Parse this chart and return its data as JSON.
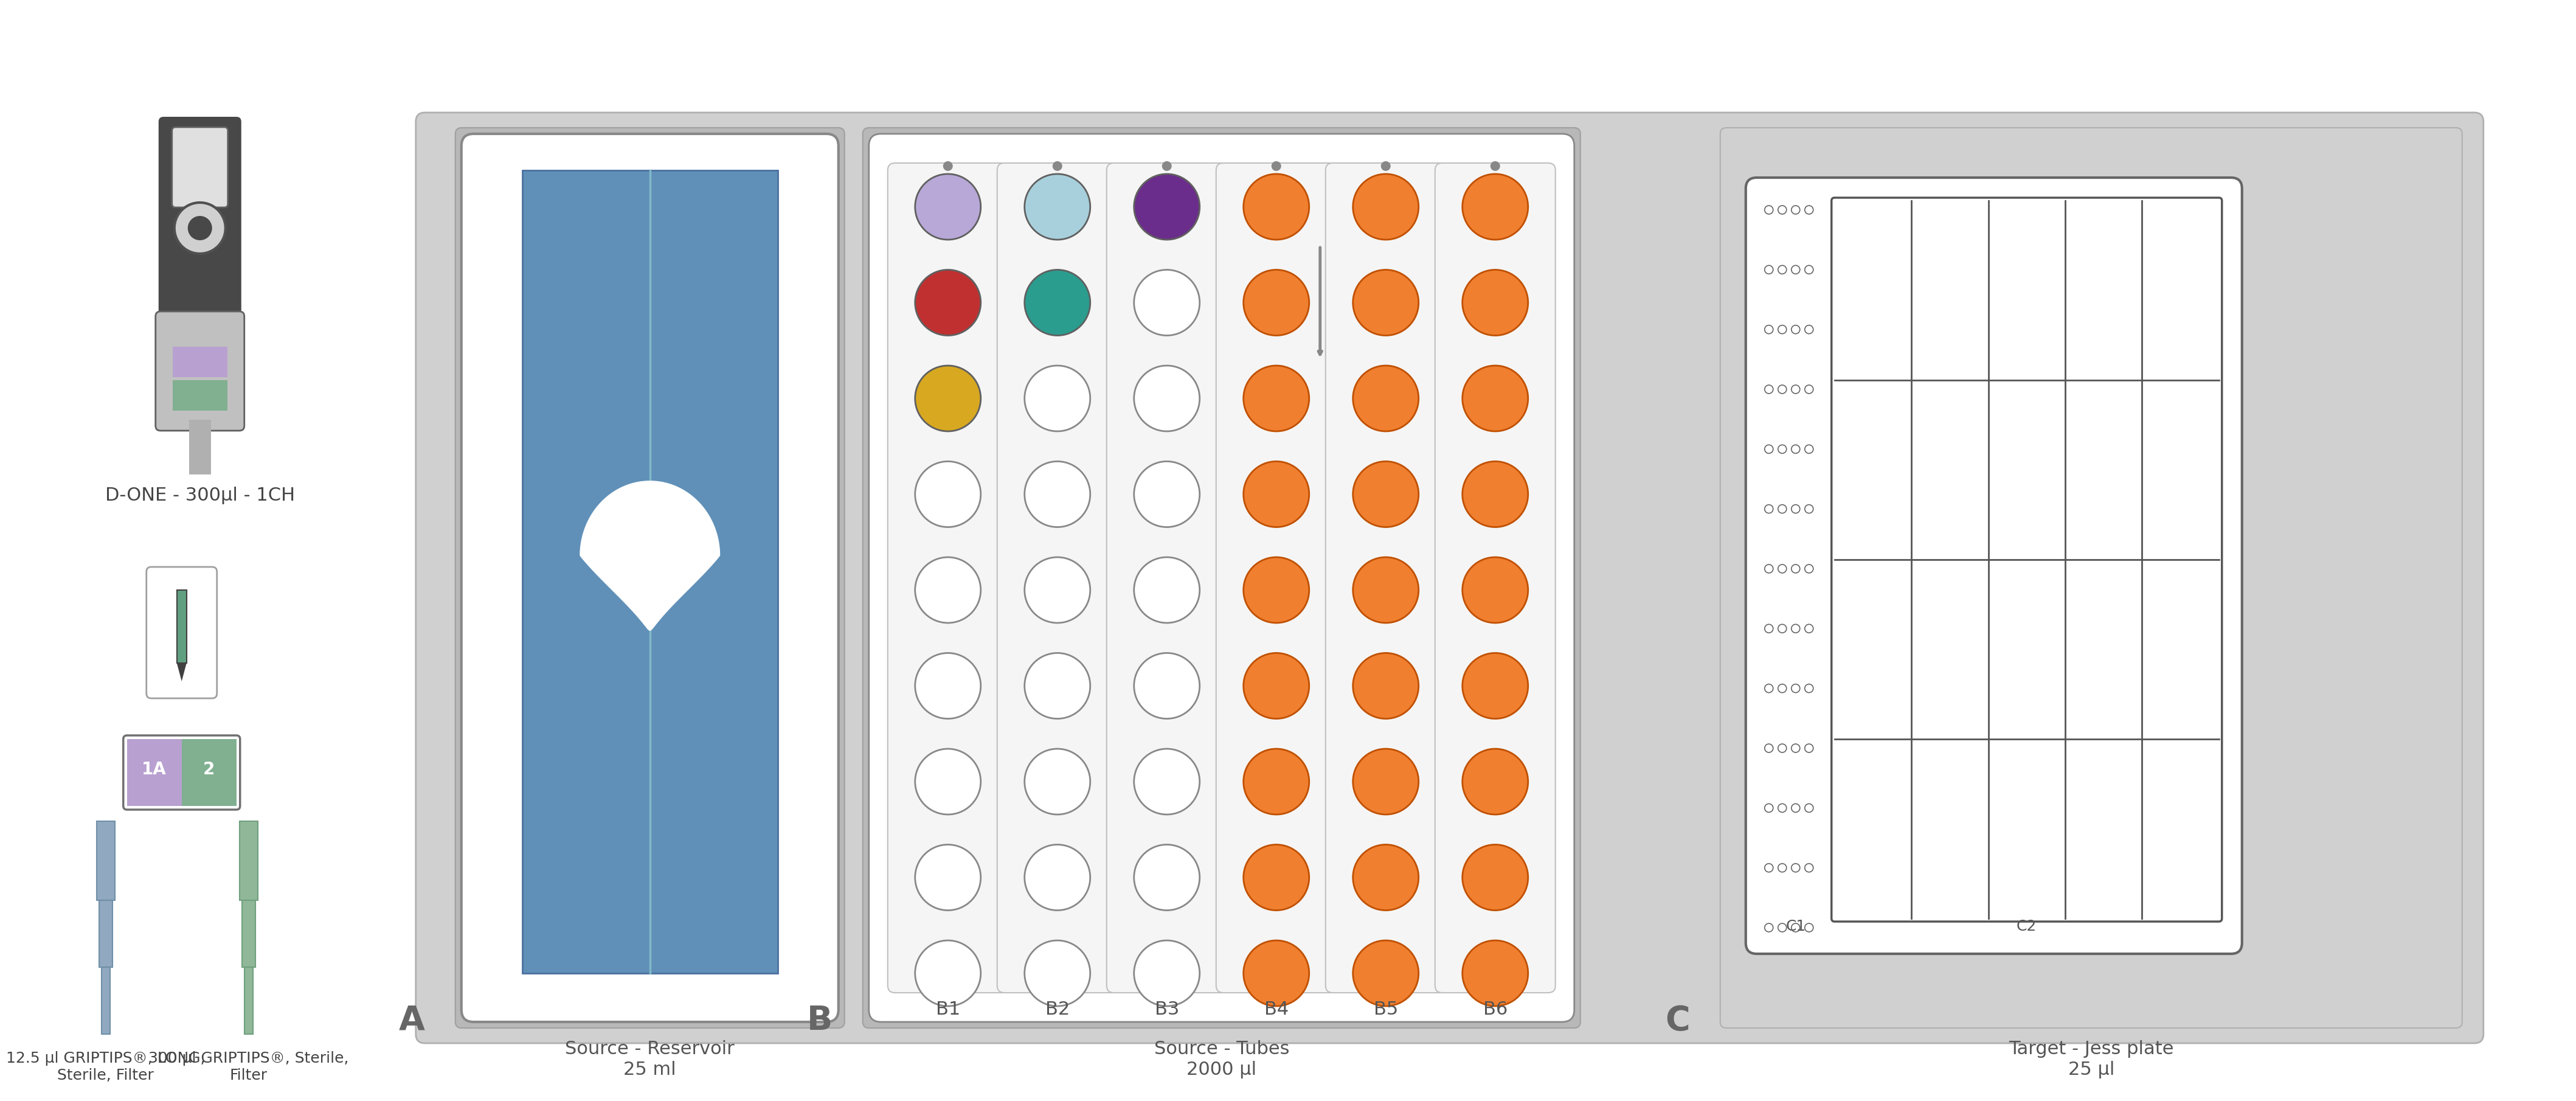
{
  "bg_color": "#ffffff",
  "light_gray_bg": "#d0d0d0",
  "medium_gray": "#b8b8b8",
  "dark_gray": "#4a4a4a",
  "white": "#ffffff",
  "off_white": "#f5f5f5",
  "blue_reservoir": "#6090b8",
  "blue_line": "#80b8c8",
  "orange_tube": "#f08030",
  "purple_tube": "#6b2d8b",
  "red_tube": "#c03030",
  "teal_tube": "#2a9d8f",
  "lavender_tube": "#b8a8d8",
  "cyan_tube": "#a8d0dc",
  "yellow_tube": "#d8a820",
  "pipette_body": "#484848",
  "pipette_gray": "#b0b0b0",
  "tip_blue": "#90a8c0",
  "tip_green": "#90b898",
  "section_bg": "#c8c8c8",
  "grid_color": "#555555",
  "label_A_text": "Source - Reservoir\n25 ml",
  "label_B_text": "Source - Tubes\n2000 µl",
  "label_C_text": "Target - Jess plate\n25 µl",
  "pipette_label": "D-ONE - 300µl - 1CH",
  "tips_label1": "12.5 µl GRIPTIPS®, LONG,\nSterile, Filter",
  "tips_label2": "300 µl GRIPTIPS®, Sterile,\nFilter",
  "col_labels": [
    "B1",
    "B2",
    "B3",
    "B4",
    "B5",
    "B6"
  ],
  "n_rows": 9,
  "n_cols": 6,
  "n_grid_cols": 5,
  "n_grid_rows": 4
}
